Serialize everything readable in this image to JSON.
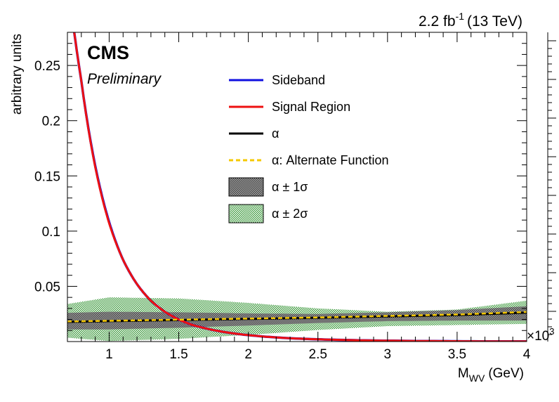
{
  "chart_data": {
    "type": "line",
    "cms_label": "CMS",
    "preliminary_label": "Preliminary",
    "lumi_value": "2.2 fb",
    "lumi_exponent": "-1",
    "lumi_energy": "(13 TeV)",
    "ylabel": "arbitrary units",
    "xlabel_main": "M",
    "xlabel_sub": "WV",
    "xlabel_unit": "(GeV)",
    "x_multiplier": "×10",
    "x_multiplier_exp": "3",
    "xlim": [
      0.7,
      4.0
    ],
    "ylim": [
      0,
      0.28
    ],
    "x_ticks": [
      1,
      1.5,
      2,
      2.5,
      3,
      3.5,
      4
    ],
    "x_tick_labels": [
      "1",
      "1.5",
      "2",
      "2.5",
      "3",
      "3.5",
      "4"
    ],
    "y_ticks": [
      0.05,
      0.1,
      0.15,
      0.2,
      0.25
    ],
    "y_tick_labels": [
      "0.05",
      "0.1",
      "0.15",
      "0.2",
      "0.25"
    ],
    "legend_position": "top-right",
    "colors": {
      "sideband": "#1010e0",
      "signal": "#ee1111",
      "alpha": "#000000",
      "alternate": "#f5c800",
      "band1": "#707070",
      "band2": "#3c9a3c"
    },
    "legend": [
      {
        "key": "sideband",
        "label": "Sideband",
        "style": "line"
      },
      {
        "key": "signal",
        "label": "Signal Region",
        "style": "line"
      },
      {
        "key": "alpha",
        "label": "α",
        "style": "line"
      },
      {
        "key": "alternate",
        "label": "α: Alternate Function",
        "style": "dashed"
      },
      {
        "key": "band1",
        "label": "α ± 1σ",
        "style": "band1"
      },
      {
        "key": "band2",
        "label": "α ± 2σ",
        "style": "band2"
      }
    ],
    "series": [
      {
        "key": "sideband",
        "x": [
          0.7,
          0.8,
          0.9,
          1.0,
          1.1,
          1.2,
          1.3,
          1.4,
          1.5,
          1.6,
          1.8,
          2.0,
          2.3,
          2.6,
          3.0,
          3.5,
          4.0
        ],
        "y": [
          0.33,
          0.236,
          0.159,
          0.108,
          0.074,
          0.052,
          0.037,
          0.027,
          0.02,
          0.015,
          0.0092,
          0.0058,
          0.003,
          0.0017,
          0.0008,
          0.0003,
          0.0001
        ]
      },
      {
        "key": "signal",
        "x": [
          0.7,
          0.8,
          0.9,
          1.0,
          1.1,
          1.2,
          1.3,
          1.4,
          1.5,
          1.6,
          1.8,
          2.0,
          2.3,
          2.6,
          3.0,
          3.5,
          4.0
        ],
        "y": [
          0.33,
          0.236,
          0.158,
          0.107,
          0.074,
          0.052,
          0.037,
          0.027,
          0.02,
          0.015,
          0.0092,
          0.0058,
          0.003,
          0.0017,
          0.0008,
          0.0003,
          0.0001
        ]
      },
      {
        "key": "alpha",
        "x": [
          0.7,
          1.0,
          1.5,
          2.0,
          2.5,
          3.0,
          3.5,
          4.0
        ],
        "y": [
          0.0178,
          0.0185,
          0.0195,
          0.0205,
          0.0215,
          0.0228,
          0.024,
          0.0262
        ]
      },
      {
        "key": "alternate",
        "x": [
          0.7,
          1.0,
          1.5,
          2.0,
          2.5,
          3.0,
          3.5,
          4.0
        ],
        "y": [
          0.0182,
          0.0188,
          0.0198,
          0.0208,
          0.0218,
          0.0232,
          0.0245,
          0.0268
        ]
      }
    ],
    "bands": [
      {
        "key": "band2",
        "x": [
          0.7,
          1.0,
          1.5,
          2.0,
          2.5,
          3.0,
          3.5,
          4.0
        ],
        "low": [
          0.0035,
          0.0005,
          0.0025,
          0.006,
          0.0105,
          0.014,
          0.015,
          0.016
        ],
        "high": [
          0.034,
          0.04,
          0.039,
          0.035,
          0.03,
          0.027,
          0.029,
          0.037
        ]
      },
      {
        "key": "band1",
        "x": [
          0.7,
          1.0,
          1.5,
          2.0,
          2.5,
          3.0,
          3.5,
          4.0
        ],
        "low": [
          0.011,
          0.011,
          0.0125,
          0.0145,
          0.0168,
          0.0185,
          0.019,
          0.019
        ],
        "high": [
          0.026,
          0.027,
          0.0265,
          0.0255,
          0.025,
          0.0265,
          0.0285,
          0.032
        ]
      }
    ]
  }
}
